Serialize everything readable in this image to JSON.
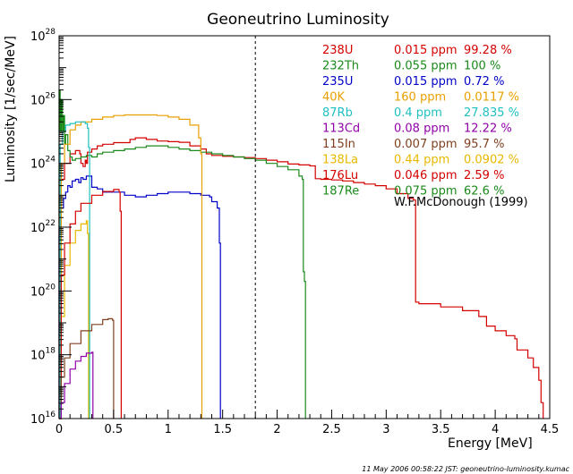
{
  "chart_data": {
    "type": "line",
    "title": "Geoneutrino Luminosity",
    "xlabel": "Energy [MeV]",
    "ylabel": "Luminosity [1/sec/MeV]",
    "xlim": [
      0,
      4.5
    ],
    "ylim_log10": [
      16,
      28
    ],
    "yscale": "log",
    "x_ticks": [
      "0",
      "0.5",
      "1",
      "1.5",
      "2",
      "2.5",
      "3",
      "3.5",
      "4",
      "4.5"
    ],
    "y_ticks": [
      {
        "base": "10",
        "exp": "16"
      },
      {
        "base": "10",
        "exp": "18"
      },
      {
        "base": "10",
        "exp": "20"
      },
      {
        "base": "10",
        "exp": "22"
      },
      {
        "base": "10",
        "exp": "24"
      },
      {
        "base": "10",
        "exp": "26"
      },
      {
        "base": "10",
        "exp": "28"
      }
    ],
    "reference_line_x": 1.8,
    "credit": "W.F.McDonough (1999)",
    "footer": "11 May 2006 00:58:22 JST: geoneutrino-luminosity.kumac",
    "legend": [
      {
        "name": "238U",
        "abundance": "0.015 ppm",
        "fraction": "99.28 %",
        "color": "#d40000"
      },
      {
        "name": "232Th",
        "abundance": "0.055 ppm",
        "fraction": "100 %",
        "color": "#1a8a1a"
      },
      {
        "name": "235U",
        "abundance": "0.015 ppm",
        "fraction": "0.72 %",
        "color": "#0000c8"
      },
      {
        "name": "40K",
        "abundance": "160 ppm",
        "fraction": "0.0117 %",
        "color": "#e8a000"
      },
      {
        "name": "87Rb",
        "abundance": "0.4 ppm",
        "fraction": "27.835 %",
        "color": "#20c0c0"
      },
      {
        "name": "113Cd",
        "abundance": "0.08 ppm",
        "fraction": "12.22 %",
        "color": "#9000a8"
      },
      {
        "name": "115In",
        "abundance": "0.007 ppm",
        "fraction": "95.7 %",
        "color": "#804020"
      },
      {
        "name": "138La",
        "abundance": "0.44 ppm",
        "fraction": "0.0902 %",
        "color": "#e8b800"
      },
      {
        "name": "176Lu",
        "abundance": "0.046 ppm",
        "fraction": "2.59 %",
        "color": "#d40000"
      },
      {
        "name": "187Re",
        "abundance": "0.075 ppm",
        "fraction": "62.6 %",
        "color": "#1a8a1a"
      }
    ],
    "series": [
      {
        "name": "238U",
        "color": "#d40000",
        "points": [
          [
            0.0,
            23.5
          ],
          [
            0.05,
            24.0
          ],
          [
            0.1,
            24.3
          ],
          [
            0.15,
            24.4
          ],
          [
            0.19,
            24.3
          ],
          [
            0.2,
            24.0
          ],
          [
            0.22,
            23.9
          ],
          [
            0.24,
            24.1
          ],
          [
            0.25,
            24.0
          ],
          [
            0.26,
            24.35
          ],
          [
            0.3,
            24.45
          ],
          [
            0.35,
            24.55
          ],
          [
            0.4,
            24.6
          ],
          [
            0.5,
            24.65
          ],
          [
            0.6,
            24.65
          ],
          [
            0.65,
            24.75
          ],
          [
            0.7,
            24.8
          ],
          [
            0.8,
            24.75
          ],
          [
            0.9,
            24.7
          ],
          [
            1.0,
            24.68
          ],
          [
            1.1,
            24.66
          ],
          [
            1.2,
            24.55
          ],
          [
            1.3,
            24.45
          ],
          [
            1.35,
            24.3
          ],
          [
            1.4,
            24.25
          ],
          [
            1.5,
            24.22
          ],
          [
            1.6,
            24.2
          ],
          [
            1.7,
            24.18
          ],
          [
            1.8,
            24.15
          ],
          [
            1.9,
            24.1
          ],
          [
            2.0,
            24.05
          ],
          [
            2.1,
            23.98
          ],
          [
            2.2,
            23.95
          ],
          [
            2.3,
            23.92
          ],
          [
            2.35,
            23.52
          ],
          [
            2.4,
            23.5
          ],
          [
            2.5,
            23.48
          ],
          [
            2.6,
            23.45
          ],
          [
            2.7,
            23.4
          ],
          [
            2.8,
            23.35
          ],
          [
            2.9,
            23.3
          ],
          [
            3.0,
            23.2
          ],
          [
            3.1,
            23.05
          ],
          [
            3.2,
            22.9
          ],
          [
            3.25,
            22.85
          ],
          [
            3.27,
            19.65
          ],
          [
            3.3,
            19.6
          ],
          [
            3.5,
            19.5
          ],
          [
            3.7,
            19.38
          ],
          [
            3.85,
            19.2
          ],
          [
            3.92,
            18.9
          ],
          [
            4.0,
            18.75
          ],
          [
            4.1,
            18.6
          ],
          [
            4.18,
            18.5
          ],
          [
            4.2,
            18.15
          ],
          [
            4.3,
            17.9
          ],
          [
            4.35,
            17.6
          ],
          [
            4.4,
            17.2
          ],
          [
            4.42,
            16.5
          ],
          [
            4.44,
            16.0
          ]
        ]
      },
      {
        "name": "232Th",
        "color": "#1a8a1a",
        "points": [
          [
            0.0,
            26.3
          ],
          [
            0.01,
            25.0
          ],
          [
            0.02,
            26.0
          ],
          [
            0.03,
            25.0
          ],
          [
            0.04,
            25.5
          ],
          [
            0.05,
            24.6
          ],
          [
            0.06,
            24.9
          ],
          [
            0.08,
            24.4
          ],
          [
            0.1,
            24.2
          ],
          [
            0.12,
            24.1
          ],
          [
            0.15,
            24.15
          ],
          [
            0.2,
            24.2
          ],
          [
            0.25,
            24.25
          ],
          [
            0.3,
            24.2
          ],
          [
            0.35,
            24.3
          ],
          [
            0.4,
            24.35
          ],
          [
            0.5,
            24.4
          ],
          [
            0.6,
            24.45
          ],
          [
            0.7,
            24.5
          ],
          [
            0.8,
            24.55
          ],
          [
            0.9,
            24.55
          ],
          [
            1.0,
            24.5
          ],
          [
            1.1,
            24.45
          ],
          [
            1.2,
            24.4
          ],
          [
            1.3,
            24.35
          ],
          [
            1.4,
            24.3
          ],
          [
            1.5,
            24.25
          ],
          [
            1.6,
            24.2
          ],
          [
            1.7,
            24.15
          ],
          [
            1.8,
            24.1
          ],
          [
            1.9,
            24.0
          ],
          [
            2.0,
            23.9
          ],
          [
            2.1,
            23.8
          ],
          [
            2.2,
            23.6
          ],
          [
            2.23,
            23.5
          ],
          [
            2.24,
            20.6
          ],
          [
            2.25,
            20.3
          ],
          [
            2.26,
            16.0
          ]
        ]
      },
      {
        "name": "235U",
        "color": "#0000c8",
        "points": [
          [
            0.0,
            22.0
          ],
          [
            0.02,
            22.6
          ],
          [
            0.04,
            22.9
          ],
          [
            0.06,
            23.1
          ],
          [
            0.08,
            23.3
          ],
          [
            0.1,
            23.25
          ],
          [
            0.12,
            23.45
          ],
          [
            0.15,
            23.5
          ],
          [
            0.18,
            23.4
          ],
          [
            0.2,
            23.55
          ],
          [
            0.22,
            23.5
          ],
          [
            0.25,
            23.6
          ],
          [
            0.3,
            23.25
          ],
          [
            0.35,
            23.2
          ],
          [
            0.4,
            23.1
          ],
          [
            0.5,
            23.1
          ],
          [
            0.6,
            23.0
          ],
          [
            0.7,
            22.95
          ],
          [
            0.8,
            23.0
          ],
          [
            0.9,
            23.05
          ],
          [
            1.0,
            23.1
          ],
          [
            1.1,
            23.1
          ],
          [
            1.2,
            23.05
          ],
          [
            1.3,
            23.0
          ],
          [
            1.38,
            22.95
          ],
          [
            1.4,
            22.8
          ],
          [
            1.45,
            22.6
          ],
          [
            1.47,
            21.5
          ],
          [
            1.48,
            16.0
          ]
        ]
      },
      {
        "name": "40K",
        "color": "#e8a000",
        "points": [
          [
            0.0,
            16.0
          ],
          [
            0.02,
            24.0
          ],
          [
            0.05,
            24.6
          ],
          [
            0.1,
            25.05
          ],
          [
            0.15,
            25.2
          ],
          [
            0.2,
            25.3
          ],
          [
            0.3,
            25.38
          ],
          [
            0.4,
            25.45
          ],
          [
            0.5,
            25.5
          ],
          [
            0.6,
            25.52
          ],
          [
            0.7,
            25.52
          ],
          [
            0.8,
            25.52
          ],
          [
            0.9,
            25.5
          ],
          [
            1.0,
            25.45
          ],
          [
            1.1,
            25.38
          ],
          [
            1.2,
            25.2
          ],
          [
            1.28,
            24.8
          ],
          [
            1.3,
            24.3
          ],
          [
            1.31,
            16.0
          ]
        ]
      },
      {
        "name": "87Rb",
        "color": "#20c0c0",
        "points": [
          [
            0.0,
            16.0
          ],
          [
            0.01,
            24.6
          ],
          [
            0.03,
            25.0
          ],
          [
            0.06,
            25.2
          ],
          [
            0.1,
            25.25
          ],
          [
            0.15,
            25.3
          ],
          [
            0.2,
            25.3
          ],
          [
            0.24,
            25.25
          ],
          [
            0.26,
            25.1
          ],
          [
            0.27,
            24.5
          ],
          [
            0.28,
            16.0
          ]
        ]
      },
      {
        "name": "138La",
        "color": "#e8b800",
        "points": [
          [
            0.0,
            16.0
          ],
          [
            0.02,
            19.2
          ],
          [
            0.05,
            20.8
          ],
          [
            0.1,
            21.5
          ],
          [
            0.15,
            21.9
          ],
          [
            0.2,
            22.1
          ],
          [
            0.25,
            22.2
          ],
          [
            0.26,
            21.8
          ],
          [
            0.27,
            16.0
          ]
        ]
      },
      {
        "name": "176Lu",
        "color": "#d40000",
        "points": [
          [
            0.0,
            16.0
          ],
          [
            0.02,
            20.5
          ],
          [
            0.05,
            21.5
          ],
          [
            0.1,
            22.1
          ],
          [
            0.15,
            22.5
          ],
          [
            0.2,
            22.75
          ],
          [
            0.3,
            23.0
          ],
          [
            0.4,
            23.12
          ],
          [
            0.5,
            23.18
          ],
          [
            0.55,
            23.1
          ],
          [
            0.56,
            22.5
          ],
          [
            0.57,
            16.0
          ]
        ]
      },
      {
        "name": "115In",
        "color": "#804020",
        "points": [
          [
            0.0,
            16.0
          ],
          [
            0.02,
            17.3
          ],
          [
            0.05,
            17.9
          ],
          [
            0.1,
            18.35
          ],
          [
            0.2,
            18.75
          ],
          [
            0.3,
            18.95
          ],
          [
            0.4,
            19.1
          ],
          [
            0.45,
            19.13
          ],
          [
            0.49,
            19.08
          ],
          [
            0.5,
            16.0
          ]
        ]
      },
      {
        "name": "113Cd",
        "color": "#9000a8",
        "points": [
          [
            0.0,
            16.0
          ],
          [
            0.02,
            16.5
          ],
          [
            0.05,
            17.1
          ],
          [
            0.1,
            17.55
          ],
          [
            0.15,
            17.8
          ],
          [
            0.2,
            17.95
          ],
          [
            0.25,
            18.05
          ],
          [
            0.3,
            18.08
          ],
          [
            0.31,
            16.0
          ]
        ]
      }
    ]
  }
}
